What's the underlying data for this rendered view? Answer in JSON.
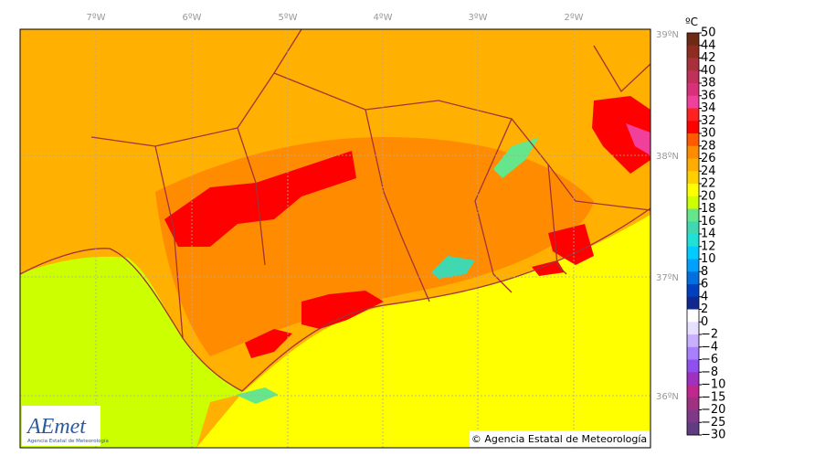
{
  "map": {
    "longitude_labels": [
      "7ºW",
      "6ºW",
      "5ºW",
      "4ºW",
      "3ºW",
      "2ºW"
    ],
    "latitude_labels": [
      "39ºN",
      "38ºN",
      "37ºN",
      "36ºN"
    ],
    "copyright": "© Agencia Estatal de Meteorología",
    "logo": {
      "title": "AEmet",
      "subtitle": "Agencia Estatal de Meteorología"
    }
  },
  "colorbar": {
    "unit": "ºC",
    "labels": [
      "50",
      "44",
      "42",
      "40",
      "38",
      "36",
      "34",
      "32",
      "30",
      "28",
      "26",
      "24",
      "22",
      "20",
      "18",
      "16",
      "14",
      "12",
      "10",
      "8",
      "6",
      "4",
      "2",
      "0",
      "−2",
      "−4",
      "−6",
      "−8",
      "−10",
      "−15",
      "−20",
      "−25",
      "−30"
    ],
    "colors": [
      "#6e2a14",
      "#8e2c22",
      "#a8303a",
      "#c0305a",
      "#d8307a",
      "#f0409c",
      "#ff2020",
      "#ff0000",
      "#ff5a00",
      "#ff8c00",
      "#ffad00",
      "#ffd000",
      "#ffff00",
      "#ccff00",
      "#66e68a",
      "#40d8b0",
      "#20e0d8",
      "#00ccff",
      "#00a0ff",
      "#0070e0",
      "#0040c0",
      "#102890",
      "#ffffff",
      "#e8e0ff",
      "#c8b0ff",
      "#a880ff",
      "#9050f0",
      "#a030c0",
      "#c02890",
      "#a03080",
      "#803888",
      "#603c80"
    ]
  }
}
